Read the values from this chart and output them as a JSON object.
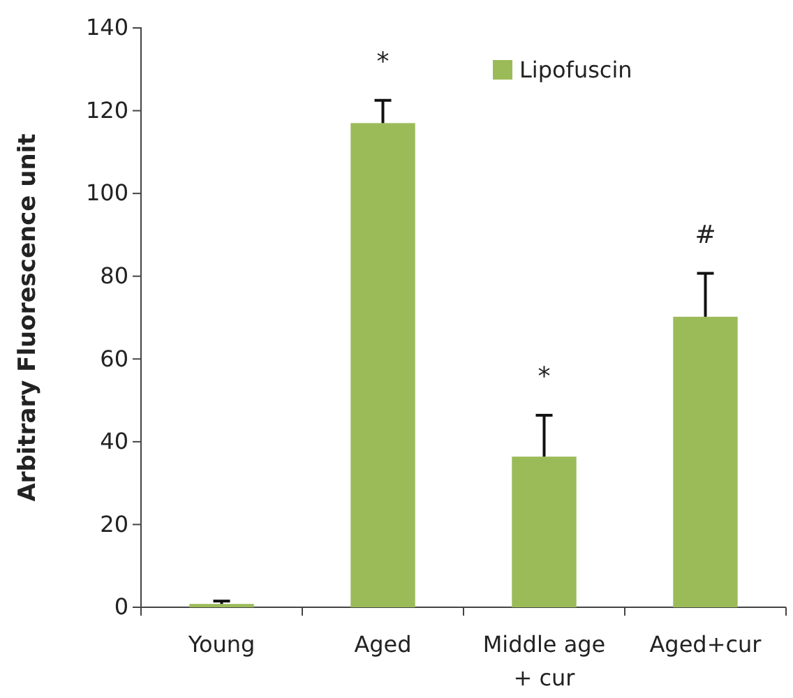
{
  "chart_data": {
    "type": "bar",
    "ylabel": "Arbitrary Fluorescence unit",
    "categories": [
      "Young",
      "Aged",
      "Middle age + cur",
      "Aged+cur"
    ],
    "series": [
      {
        "name": "Lipofuscin",
        "color": "#9bbb59",
        "values": [
          0.8,
          117,
          36.4,
          70.2
        ],
        "errors": [
          0.7,
          5.5,
          10,
          10.5
        ]
      }
    ],
    "ylim": [
      0,
      140
    ],
    "yticks": [
      0,
      20,
      40,
      60,
      80,
      100,
      120,
      140
    ],
    "grid": false,
    "legend": "top right",
    "annotations": [
      "*",
      "*",
      "#"
    ]
  }
}
